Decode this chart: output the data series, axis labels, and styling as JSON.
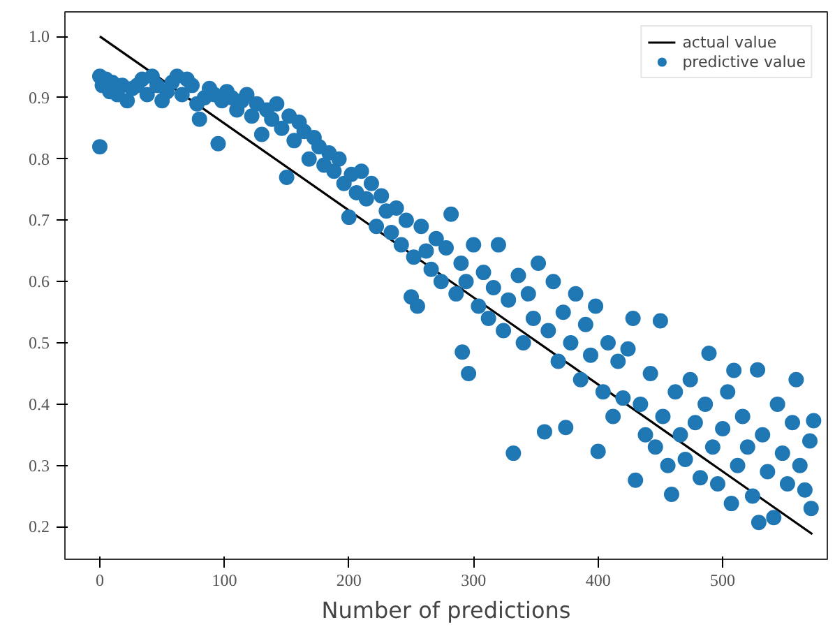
{
  "chart_data": {
    "type": "scatter",
    "xlabel": "Number of predictions",
    "legend": "top right",
    "grid": false,
    "xlim": [
      -28,
      584
    ],
    "ylim": [
      0.147,
      1.04
    ],
    "xticks": [
      0,
      100,
      200,
      300,
      400,
      500
    ],
    "yticks": [
      0.2,
      0.3,
      0.4,
      0.5,
      0.6,
      0.7,
      0.8,
      0.9,
      {
        "value": 1,
        "label": "1.0"
      }
    ],
    "series": [
      {
        "name": "actual value",
        "type": "line",
        "color": "#000000",
        "x": [
          0,
          572
        ],
        "values": [
          1.0,
          0.188
        ]
      },
      {
        "name": "predictive value",
        "marker": "circle",
        "color": "#1f77b4",
        "x": [
          0,
          0,
          2,
          5,
          8,
          10,
          14,
          18,
          22,
          26,
          30,
          34,
          38,
          42,
          46,
          50,
          54,
          58,
          62,
          66,
          70,
          74,
          78,
          80,
          84,
          88,
          92,
          95,
          98,
          102,
          106,
          110,
          114,
          118,
          122,
          126,
          130,
          134,
          138,
          142,
          146,
          150,
          152,
          156,
          160,
          164,
          168,
          172,
          176,
          180,
          184,
          188,
          192,
          196,
          200,
          202,
          206,
          210,
          214,
          218,
          222,
          226,
          230,
          234,
          238,
          242,
          246,
          250,
          252,
          255,
          258,
          262,
          266,
          270,
          274,
          278,
          282,
          286,
          290,
          291,
          294,
          296,
          300,
          304,
          308,
          312,
          316,
          320,
          324,
          328,
          332,
          336,
          340,
          344,
          348,
          352,
          357,
          360,
          364,
          368,
          372,
          374,
          378,
          382,
          386,
          390,
          394,
          398,
          400,
          404,
          408,
          412,
          416,
          420,
          424,
          428,
          430,
          434,
          438,
          442,
          446,
          450,
          452,
          456,
          459,
          462,
          466,
          470,
          474,
          478,
          482,
          486,
          489,
          492,
          496,
          500,
          504,
          507,
          509,
          512,
          516,
          520,
          524,
          528,
          529,
          532,
          536,
          541,
          544,
          548,
          552,
          556,
          559,
          562,
          566,
          570,
          571,
          573
        ],
        "values": [
          0.82,
          0.935,
          0.92,
          0.93,
          0.91,
          0.925,
          0.905,
          0.92,
          0.895,
          0.915,
          0.92,
          0.93,
          0.905,
          0.935,
          0.92,
          0.895,
          0.91,
          0.925,
          0.935,
          0.905,
          0.93,
          0.92,
          0.89,
          0.865,
          0.9,
          0.915,
          0.905,
          0.825,
          0.895,
          0.91,
          0.9,
          0.88,
          0.895,
          0.905,
          0.87,
          0.89,
          0.84,
          0.88,
          0.865,
          0.89,
          0.85,
          0.77,
          0.87,
          0.83,
          0.86,
          0.845,
          0.8,
          0.835,
          0.82,
          0.79,
          0.81,
          0.78,
          0.8,
          0.76,
          0.705,
          0.775,
          0.745,
          0.78,
          0.735,
          0.76,
          0.69,
          0.74,
          0.715,
          0.68,
          0.72,
          0.66,
          0.7,
          0.575,
          0.64,
          0.56,
          0.69,
          0.65,
          0.62,
          0.67,
          0.6,
          0.655,
          0.71,
          0.58,
          0.63,
          0.485,
          0.6,
          0.45,
          0.66,
          0.56,
          0.615,
          0.54,
          0.59,
          0.66,
          0.52,
          0.57,
          0.32,
          0.61,
          0.5,
          0.58,
          0.54,
          0.63,
          0.355,
          0.52,
          0.6,
          0.47,
          0.55,
          0.362,
          0.5,
          0.58,
          0.44,
          0.53,
          0.48,
          0.56,
          0.323,
          0.42,
          0.5,
          0.38,
          0.47,
          0.41,
          0.49,
          0.54,
          0.276,
          0.4,
          0.35,
          0.45,
          0.33,
          0.536,
          0.38,
          0.3,
          0.253,
          0.42,
          0.35,
          0.31,
          0.44,
          0.37,
          0.28,
          0.4,
          0.483,
          0.33,
          0.27,
          0.36,
          0.42,
          0.238,
          0.455,
          0.3,
          0.38,
          0.33,
          0.25,
          0.456,
          0.207,
          0.35,
          0.29,
          0.215,
          0.4,
          0.32,
          0.27,
          0.37,
          0.44,
          0.3,
          0.26,
          0.34,
          0.23,
          0.373
        ]
      }
    ]
  }
}
